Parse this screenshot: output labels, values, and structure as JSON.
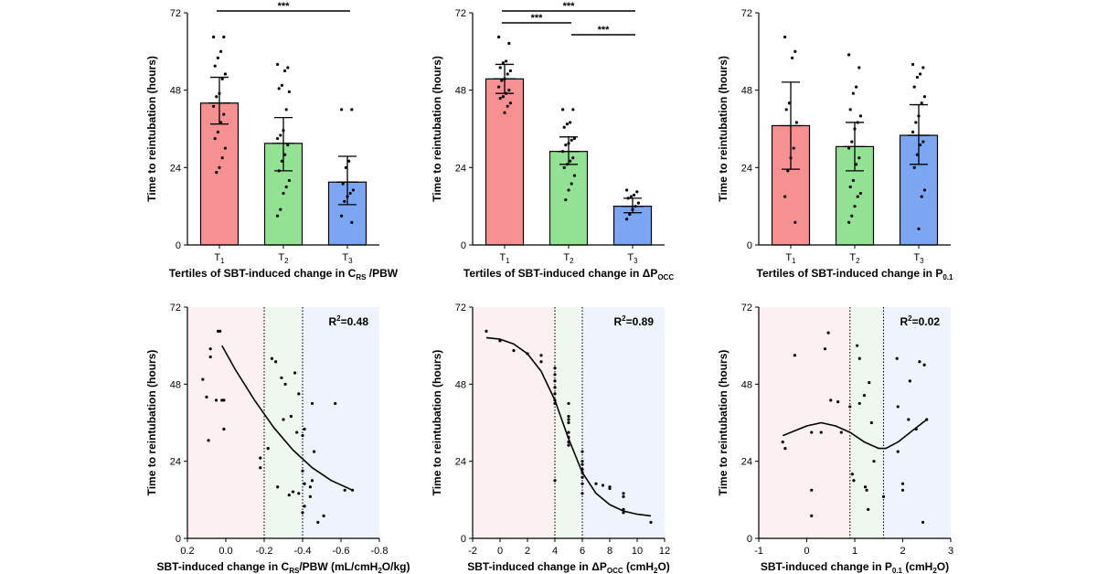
{
  "chart_data": [
    {
      "id": "A",
      "type": "bar",
      "categories": [
        {
          "base": "T",
          "sub": "1"
        },
        {
          "base": "T",
          "sub": "2"
        },
        {
          "base": "T",
          "sub": "3"
        }
      ],
      "colors": [
        "#f79191",
        "#93e294",
        "#7aa6f4"
      ],
      "values": [
        44,
        31.5,
        19.5
      ],
      "err_low": [
        37.5,
        23,
        12.5
      ],
      "err_high": [
        52,
        39.5,
        27.5
      ],
      "points": [
        [
          64.5,
          64.5,
          60,
          58,
          55.5,
          53,
          51.5,
          47,
          46,
          43,
          40.5,
          38,
          35,
          33,
          30,
          27,
          24,
          22.5
        ],
        [
          56,
          55,
          54,
          49.5,
          48.5,
          47.5,
          42,
          35.5,
          34,
          33,
          31,
          28,
          26,
          23,
          20,
          18,
          16,
          11,
          9
        ],
        [
          42,
          42,
          26,
          24,
          19,
          17,
          16,
          15,
          13.5,
          9,
          7
        ]
      ],
      "ylim": [
        0,
        72
      ],
      "yticks": [
        0,
        24,
        48,
        72
      ],
      "ylabel": "Time to reintubation (hours)",
      "xlabel": {
        "pre": "Tertiles of SBT-induced change in C",
        "sub": "RS",
        "post": " /PBW"
      },
      "brackets": [
        {
          "from": 0,
          "to": 2,
          "level": 0,
          "text": "***"
        }
      ]
    },
    {
      "id": "B",
      "type": "bar",
      "categories": [
        {
          "base": "T",
          "sub": "1"
        },
        {
          "base": "T",
          "sub": "2"
        },
        {
          "base": "T",
          "sub": "3"
        }
      ],
      "colors": [
        "#f79191",
        "#93e294",
        "#7aa6f4"
      ],
      "values": [
        51.5,
        29,
        12
      ],
      "err_low": [
        47,
        25,
        10
      ],
      "err_high": [
        56,
        33.5,
        14.5
      ],
      "points": [
        [
          64.5,
          62.5,
          57,
          56.5,
          55,
          54,
          53,
          51.5,
          51,
          49,
          48,
          47,
          46,
          45.5,
          44,
          43,
          41
        ],
        [
          42,
          42,
          38,
          37.5,
          36.5,
          33,
          32.5,
          31.5,
          31,
          29,
          27,
          26,
          25,
          24,
          21.5,
          19,
          17,
          14
        ],
        [
          17,
          16.5,
          15.5,
          15,
          14.5,
          13,
          12,
          11,
          9.5,
          8
        ]
      ],
      "ylim": [
        0,
        72
      ],
      "yticks": [
        0,
        24,
        48,
        72
      ],
      "ylabel": "Time to reintubation (hours)",
      "xlabel": {
        "pre": "Tertiles of SBT-induced change in ΔP",
        "sub": "OCC",
        "post": ""
      },
      "brackets": [
        {
          "from": 0,
          "to": 2,
          "level": 0,
          "text": "***"
        },
        {
          "from": 0,
          "to": 1,
          "level": 1,
          "text": "***"
        },
        {
          "from": 1,
          "to": 2,
          "level": 2,
          "text": "***"
        }
      ]
    },
    {
      "id": "C",
      "type": "bar",
      "categories": [
        {
          "base": "T",
          "sub": "1"
        },
        {
          "base": "T",
          "sub": "2"
        },
        {
          "base": "T",
          "sub": "3"
        }
      ],
      "colors": [
        "#f79191",
        "#93e294",
        "#7aa6f4"
      ],
      "values": [
        37,
        30.5,
        34
      ],
      "err_low": [
        23.5,
        23,
        25
      ],
      "err_high": [
        50.5,
        38,
        43.5
      ],
      "points": [
        [
          64.5,
          60,
          58,
          44,
          42,
          38,
          30,
          27,
          23,
          15,
          7
        ],
        [
          59,
          55,
          49,
          47,
          42,
          40,
          38,
          36,
          32,
          30,
          27,
          25,
          20,
          18,
          16,
          15,
          12,
          9,
          7
        ],
        [
          56,
          55,
          53,
          52,
          49,
          46,
          44,
          40,
          38,
          35,
          32,
          31,
          28,
          24,
          17,
          15,
          5
        ]
      ],
      "ylim": [
        0,
        72
      ],
      "yticks": [
        0,
        24,
        48,
        72
      ],
      "ylabel": "Time to reintubation (hours)",
      "xlabel": {
        "pre": "Tertiles of SBT-induced change in P",
        "sub": "0.1",
        "post": ""
      },
      "brackets": []
    },
    {
      "id": "D",
      "type": "scatter",
      "xlim": [
        0.2,
        -0.8
      ],
      "xticks": [
        {
          "v": 0.2,
          "t": "0.2"
        },
        {
          "v": 0.0,
          "t": "0.0"
        },
        {
          "v": -0.2,
          "t": "-0.2"
        },
        {
          "v": -0.4,
          "t": "-0.4"
        },
        {
          "v": -0.6,
          "t": "-0.6"
        },
        {
          "v": -0.8,
          "t": "-0.8"
        }
      ],
      "ylim": [
        0,
        72
      ],
      "yticks": [
        0,
        24,
        48,
        72
      ],
      "cutoffs": [
        -0.2,
        -0.4
      ],
      "points": [
        [
          0.03,
          64.5
        ],
        [
          0.04,
          64.5
        ],
        [
          0.08,
          59
        ],
        [
          0.08,
          56.5
        ],
        [
          0.12,
          49.5
        ],
        [
          0.1,
          44
        ],
        [
          0.05,
          43
        ],
        [
          0.02,
          43
        ],
        [
          0.01,
          43
        ],
        [
          0.09,
          30.5
        ],
        [
          0.01,
          34
        ],
        [
          -0.18,
          25
        ],
        [
          -0.22,
          28
        ],
        [
          -0.18,
          22
        ],
        [
          -0.24,
          56
        ],
        [
          -0.26,
          55
        ],
        [
          -0.29,
          50
        ],
        [
          -0.31,
          48
        ],
        [
          -0.36,
          51.5
        ],
        [
          -0.38,
          45
        ],
        [
          -0.45,
          42
        ],
        [
          -0.57,
          42
        ],
        [
          -0.3,
          37
        ],
        [
          -0.34,
          38
        ],
        [
          -0.37,
          33
        ],
        [
          -0.41,
          34
        ],
        [
          -0.4,
          32
        ],
        [
          -0.46,
          27
        ],
        [
          -0.27,
          16
        ],
        [
          -0.38,
          14
        ],
        [
          -0.41,
          17
        ],
        [
          -0.4,
          21
        ],
        [
          -0.44,
          16
        ],
        [
          -0.45,
          18
        ],
        [
          -0.33,
          13.5
        ],
        [
          -0.35,
          14.5
        ],
        [
          -0.41,
          10
        ],
        [
          -0.4,
          8
        ],
        [
          -0.44,
          13
        ],
        [
          -0.48,
          5
        ],
        [
          -0.51,
          7
        ],
        [
          -0.62,
          15
        ],
        [
          -0.66,
          15
        ]
      ],
      "curve": [
        [
          0.02,
          60
        ],
        [
          -0.05,
          52.5
        ],
        [
          -0.15,
          43
        ],
        [
          -0.25,
          34.5
        ],
        [
          -0.35,
          27.5
        ],
        [
          -0.45,
          22
        ],
        [
          -0.55,
          18
        ],
        [
          -0.66,
          15
        ]
      ],
      "r2": {
        "pre": "R",
        "sup": "2",
        "post": "=0.48"
      },
      "ylabel": "Time to reintubation (hours)",
      "xlabel": {
        "pre": "SBT-induced change in C",
        "sub": "RS",
        "post": "/PBW (mL/cmH",
        "sub2": "2",
        "post2": "O/kg)"
      }
    },
    {
      "id": "E",
      "type": "scatter",
      "xlim": [
        -2,
        12
      ],
      "xticks": [
        {
          "v": -2,
          "t": "-2"
        },
        {
          "v": 0,
          "t": "0"
        },
        {
          "v": 2,
          "t": "2"
        },
        {
          "v": 4,
          "t": "4"
        },
        {
          "v": 6,
          "t": "6"
        },
        {
          "v": 8,
          "t": "8"
        },
        {
          "v": 10,
          "t": "10"
        },
        {
          "v": 12,
          "t": "12"
        }
      ],
      "ylim": [
        0,
        72
      ],
      "yticks": [
        0,
        24,
        48,
        72
      ],
      "cutoffs": [
        4,
        6
      ],
      "points": [
        [
          -1,
          64.5
        ],
        [
          0,
          61.5
        ],
        [
          1,
          58.5
        ],
        [
          2,
          57.5
        ],
        [
          3,
          57
        ],
        [
          3,
          55
        ],
        [
          4,
          53
        ],
        [
          4,
          51
        ],
        [
          4,
          49
        ],
        [
          4,
          47
        ],
        [
          4,
          45
        ],
        [
          4,
          43
        ],
        [
          4,
          42
        ],
        [
          4,
          18
        ],
        [
          5,
          42
        ],
        [
          5,
          38
        ],
        [
          5,
          37
        ],
        [
          5,
          36
        ],
        [
          5,
          33
        ],
        [
          5,
          31.5
        ],
        [
          5,
          30
        ],
        [
          5,
          29
        ],
        [
          6,
          27
        ],
        [
          6,
          24
        ],
        [
          6,
          23
        ],
        [
          6,
          21.5
        ],
        [
          6,
          20.5
        ],
        [
          6,
          19
        ],
        [
          6,
          17
        ],
        [
          6,
          14
        ],
        [
          7,
          17
        ],
        [
          7.5,
          16.5
        ],
        [
          8,
          15.5
        ],
        [
          8,
          16
        ],
        [
          9,
          14
        ],
        [
          9,
          13
        ],
        [
          9,
          9
        ],
        [
          9,
          8
        ],
        [
          11,
          5
        ]
      ],
      "curve": [
        [
          -1,
          62.5
        ],
        [
          0,
          62
        ],
        [
          1,
          60.5
        ],
        [
          2,
          57.5
        ],
        [
          3,
          52
        ],
        [
          4,
          43
        ],
        [
          5,
          31
        ],
        [
          6,
          20.5
        ],
        [
          7,
          14
        ],
        [
          8,
          10.5
        ],
        [
          9,
          8.5
        ],
        [
          10,
          7.5
        ],
        [
          11,
          7
        ]
      ],
      "r2": {
        "pre": "R",
        "sup": "2",
        "post": "=0.89"
      },
      "ylabel": "Time to reintubation (hours)",
      "xlabel": {
        "pre": "SBT-induced change in ΔP",
        "sub": "OCC",
        "post": " (cmH",
        "sub2": "2",
        "post2": "O)"
      }
    },
    {
      "id": "F",
      "type": "scatter",
      "xlim": [
        -1,
        3
      ],
      "xticks": [
        {
          "v": -1,
          "t": "-1"
        },
        {
          "v": 0,
          "t": "0"
        },
        {
          "v": 1,
          "t": "1"
        },
        {
          "v": 2,
          "t": "2"
        },
        {
          "v": 3,
          "t": "3"
        }
      ],
      "ylim": [
        0,
        72
      ],
      "yticks": [
        0,
        24,
        48,
        72
      ],
      "cutoffs": [
        0.9,
        1.6
      ],
      "points": [
        [
          -0.5,
          30
        ],
        [
          -0.45,
          28
        ],
        [
          -0.25,
          57
        ],
        [
          0.1,
          15
        ],
        [
          0.1,
          7
        ],
        [
          0.1,
          33
        ],
        [
          0.3,
          33
        ],
        [
          0.38,
          59
        ],
        [
          0.45,
          64
        ],
        [
          0.5,
          43
        ],
        [
          0.65,
          42.5
        ],
        [
          0.72,
          33
        ],
        [
          0.9,
          41
        ],
        [
          0.95,
          20
        ],
        [
          0.98,
          18
        ],
        [
          1.05,
          60
        ],
        [
          1.1,
          56
        ],
        [
          1.1,
          42
        ],
        [
          1.2,
          44.5
        ],
        [
          1.22,
          16
        ],
        [
          1.25,
          15
        ],
        [
          1.28,
          9
        ],
        [
          1.3,
          48.5
        ],
        [
          1.35,
          36
        ],
        [
          1.4,
          24
        ],
        [
          1.6,
          13
        ],
        [
          1.88,
          56
        ],
        [
          1.9,
          41
        ],
        [
          1.9,
          27
        ],
        [
          2.0,
          17
        ],
        [
          2.0,
          15
        ],
        [
          2.12,
          37
        ],
        [
          2.15,
          49
        ],
        [
          2.28,
          34
        ],
        [
          2.35,
          55
        ],
        [
          2.42,
          5
        ],
        [
          2.45,
          54
        ],
        [
          2.5,
          37
        ]
      ],
      "curve": [
        [
          -0.5,
          32
        ],
        [
          0,
          35
        ],
        [
          0.3,
          36
        ],
        [
          0.6,
          35
        ],
        [
          0.9,
          33
        ],
        [
          1.2,
          30
        ],
        [
          1.5,
          28
        ],
        [
          1.65,
          28
        ],
        [
          1.9,
          30
        ],
        [
          2.2,
          33.5
        ],
        [
          2.5,
          37
        ]
      ],
      "r2": {
        "pre": "R",
        "sup": "2",
        "post": "=0.02"
      },
      "ylabel": "Time to reintubation (hours)",
      "xlabel": {
        "pre": "SBT-induced change in P",
        "sub": "0.1",
        "post": " (cmH",
        "sub2": "2",
        "post2": "O)"
      }
    }
  ]
}
